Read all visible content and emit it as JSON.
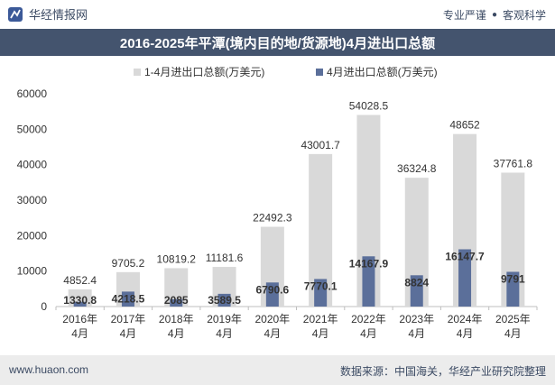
{
  "header": {
    "brand": "华经情报网",
    "slogan_left": "专业严谨",
    "slogan_sep": "●",
    "slogan_right": "客观科学"
  },
  "footer": {
    "url": "www.huaon.com",
    "source": "数据来源：中国海关，华经产业研究院整理"
  },
  "colors": {
    "series1": "#d9d9d9",
    "series2": "#5b6f9a",
    "header_band": "#44546e",
    "footer_bg": "#ececec"
  },
  "chart_data": {
    "type": "bar",
    "title": "2016-2025年平潭(境内目的地/货源地)4月进出口总额",
    "categories": [
      "2016年\n4月",
      "2017年\n4月",
      "2018年\n4月",
      "2019年\n4月",
      "2020年\n4月",
      "2021年\n4月",
      "2022年\n4月",
      "2023年\n4月",
      "2024年\n4月",
      "2025年\n4月"
    ],
    "series": [
      {
        "name": "1-4月进出口总额(万美元)",
        "values": [
          4852.4,
          9705.2,
          10819.2,
          11181.6,
          22492.3,
          43001.7,
          54028.5,
          36324.8,
          48652,
          37761.8
        ],
        "labels": [
          "4852.4",
          "9705.2",
          "10819.2",
          "11181.6",
          "22492.3",
          "43001.7",
          "54028.5",
          "36324.8",
          "48652",
          "37761.8"
        ]
      },
      {
        "name": "4月进出口总额(万美元)",
        "values": [
          1330.8,
          4218.5,
          2085,
          3589.5,
          6790.6,
          7770.1,
          14167.9,
          8824,
          16147.7,
          9791
        ],
        "labels": [
          "1330.8",
          "4218.5",
          "2085",
          "3589.5",
          "6790.6",
          "7770.1",
          "14167.9",
          "8824",
          "16147.7",
          "9791"
        ]
      }
    ],
    "yticks": [
      "0",
      "10000",
      "20000",
      "30000",
      "40000",
      "50000",
      "60000"
    ],
    "ylim": [
      0,
      60000
    ],
    "grid": false,
    "legend_position": "top-center"
  }
}
